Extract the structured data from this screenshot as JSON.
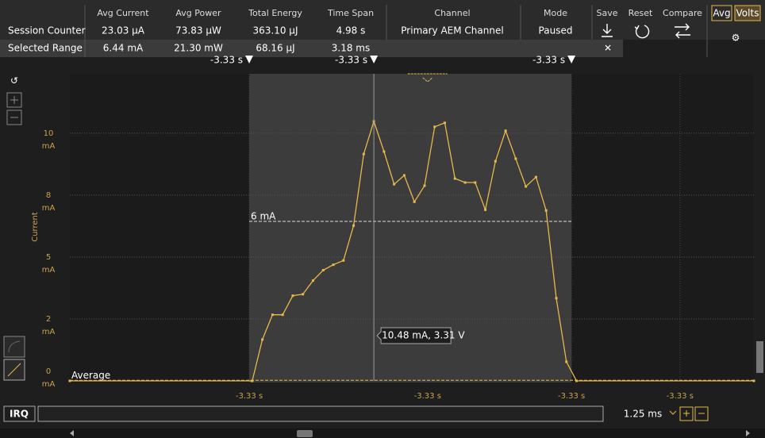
{
  "header": {
    "columns": [
      "Avg Current",
      "Avg Power",
      "Total Energy",
      "Time Span",
      "Channel",
      "Mode"
    ],
    "rows": [
      {
        "label": "Session Counter",
        "cells": [
          "23.03 µA",
          "73.83 µW",
          "363.10 µJ",
          "4.98 s",
          "Primary AEM Channel",
          "Paused"
        ]
      },
      {
        "label": "Selected Range",
        "cells": [
          "6.44 mA",
          "21.30 mW",
          "68.16 µJ",
          "3.18 ms"
        ]
      }
    ],
    "buttons": [
      "Save",
      "Reset",
      "Compare"
    ],
    "toggles": [
      "Avg",
      "Volts"
    ]
  },
  "chart_data": {
    "type": "line",
    "y_label": "Current",
    "y_unit": "mA",
    "color": "#e6b94c",
    "x": [
      0,
      1.8,
      1.9,
      2.0,
      2.1,
      2.2,
      2.3,
      2.4,
      2.5,
      2.6,
      2.7,
      2.8,
      2.9,
      3.0,
      3.1,
      3.2,
      3.3,
      3.4,
      3.5,
      3.6,
      3.7,
      3.8,
      3.9,
      4.0,
      4.1,
      4.2,
      4.3,
      4.4,
      4.5,
      4.6,
      4.7,
      4.8,
      4.9,
      5.0,
      6.75
    ],
    "values": [
      0,
      0,
      1.67,
      2.67,
      2.67,
      3.44,
      3.5,
      4.05,
      4.47,
      4.69,
      4.86,
      6.27,
      9.16,
      10.48,
      9.26,
      7.94,
      8.3,
      7.23,
      7.88,
      10.26,
      10.42,
      8.17,
      8.01,
      8.01,
      6.91,
      8.87,
      10.1,
      8.97,
      7.85,
      8.23,
      6.88,
      3.34,
      0.77,
      0,
      0
    ],
    "xlim": [
      0,
      6.75
    ],
    "ylim": [
      0,
      12.4
    ],
    "yticks": [
      0,
      {
        "value": 2.5,
        "label": "2"
      },
      5,
      {
        "value": 7.5,
        "label": "8"
      },
      10
    ],
    "xticks": [
      {
        "value": 1.77,
        "label": "-3.33 s"
      },
      {
        "value": 3.53,
        "label": "-3.33 s"
      },
      {
        "value": 4.95,
        "label": "-3.33 s"
      },
      {
        "value": 6.02,
        "label": "-3.33 s"
      }
    ],
    "markers": [
      {
        "value": 1.77,
        "label": "-3.33 s"
      },
      {
        "value": 3.0,
        "label": "-3.33 s"
      },
      {
        "value": 4.95,
        "label": "-3.33 s"
      }
    ],
    "selection": [
      1.77,
      4.95
    ],
    "average": {
      "value": 0.023,
      "label": "Average"
    },
    "range_average": {
      "value": 6.44,
      "label": "6 mA"
    },
    "tooltip": "10.48 mA, 3.31 V",
    "grid": true
  },
  "footer": {
    "irq": "IRQ",
    "window": "1.25 ms"
  }
}
